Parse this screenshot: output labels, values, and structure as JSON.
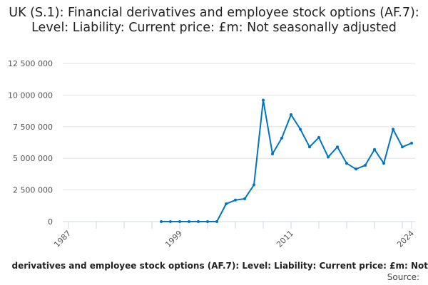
{
  "chart_data": {
    "type": "line",
    "title": "UK (S.1): Financial derivatives and employee stock options (AF.7): Level: Liability: Current price: £m: Not seasonally adjusted",
    "x": [
      1997,
      1998,
      1999,
      2000,
      2001,
      2002,
      2003,
      2004,
      2005,
      2006,
      2007,
      2008,
      2009,
      2010,
      2011,
      2012,
      2013,
      2014,
      2015,
      2016,
      2017,
      2018,
      2019,
      2020,
      2021,
      2022,
      2023,
      2024
    ],
    "values": [
      0,
      0,
      0,
      0,
      0,
      0,
      0,
      1400000,
      1700000,
      1800000,
      2900000,
      9600000,
      5350000,
      6600000,
      8450000,
      7300000,
      5900000,
      6650000,
      5100000,
      5900000,
      4600000,
      4150000,
      4450000,
      5700000,
      4600000,
      7300000,
      5900000,
      6200000
    ],
    "xlim": [
      1987,
      2024
    ],
    "ylim": [
      0,
      12500000
    ],
    "x_tick_labels": [
      "1987",
      "1999",
      "2011",
      "2024"
    ],
    "y_tick_labels": [
      "0",
      "2 500 000",
      "5 000 000",
      "7 500 000",
      "10 000 000",
      "12 500 000"
    ],
    "grid": true,
    "line_color": "#0075c2"
  },
  "caption": "derivatives and employee stock options (AF.7): Level: Liability: Current price: £m: Not",
  "source": "Source:"
}
